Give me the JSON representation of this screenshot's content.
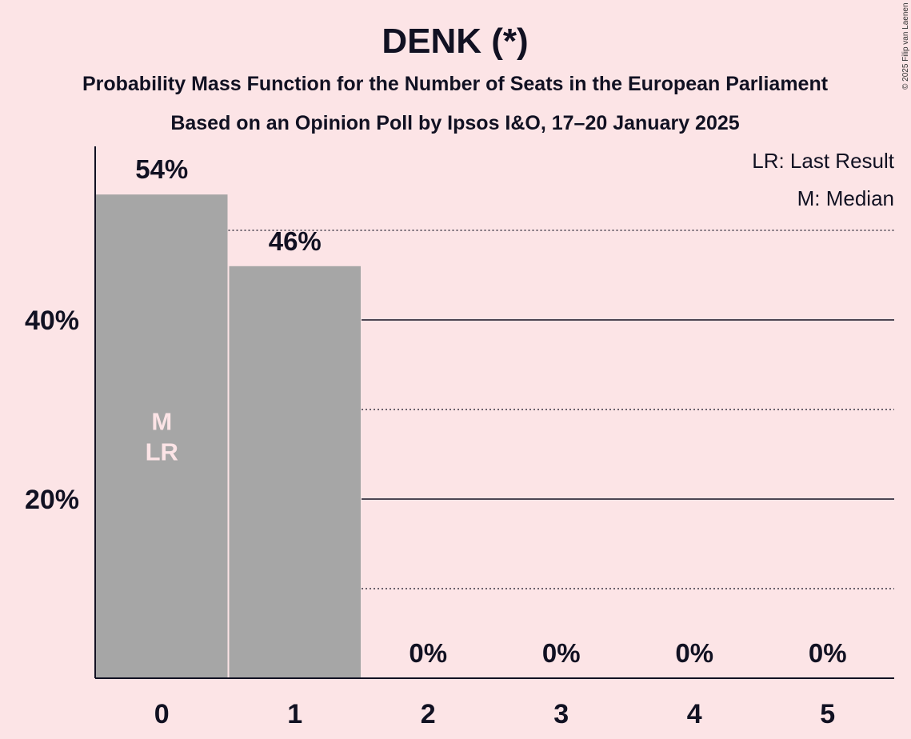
{
  "title": "DENK (*)",
  "subtitle": "Probability Mass Function for the Number of Seats in the European Parliament",
  "subtitle2": "Based on an Opinion Poll by Ipsos I&O, 17–20 January 2025",
  "copyright": "© 2025 Filip van Laenen",
  "legend": {
    "lr": "LR: Last Result",
    "m": "M: Median"
  },
  "colors": {
    "background": "#fce4e6",
    "bar": "#a6a6a6",
    "text": "#111122"
  },
  "chart_data": {
    "type": "bar",
    "categories": [
      "0",
      "1",
      "2",
      "3",
      "4",
      "5"
    ],
    "values": [
      54,
      46,
      0,
      0,
      0,
      0
    ],
    "value_labels": [
      "54%",
      "46%",
      "0%",
      "0%",
      "0%",
      "0%"
    ],
    "y_ticks": [
      20,
      40
    ],
    "y_tick_labels": [
      "20%",
      "40%"
    ],
    "minor_gridlines": [
      10,
      30,
      50
    ],
    "ylim": [
      0,
      59
    ],
    "bar_annotations": [
      {
        "category": "0",
        "lines": [
          "M",
          "LR"
        ]
      }
    ],
    "legend_placement": "top-right"
  }
}
